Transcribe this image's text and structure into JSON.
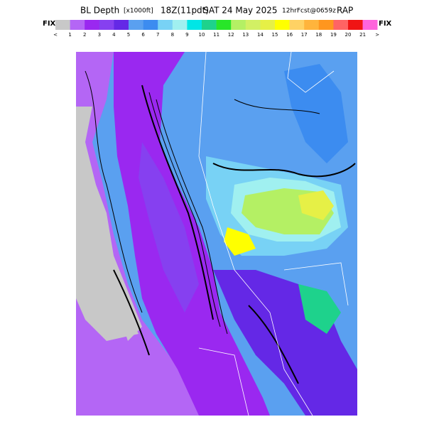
{
  "header": {
    "title": "BL Depth",
    "unit": "[x1000ft]",
    "time": "18Z(11pdt)",
    "date": "SAT 24 May 2025",
    "forecast": "12hrFcst@0659z",
    "model": "RAP"
  },
  "colorbar": {
    "left_label": "FIX",
    "right_label": "FIX",
    "colors": [
      "#c8c8c8",
      "#b466f5",
      "#9a28f0",
      "#8640f0",
      "#6428e6",
      "#5aa0f0",
      "#3c8cf0",
      "#78d2f5",
      "#a0f0f0",
      "#00e6e6",
      "#1ed28c",
      "#28e628",
      "#b4f064",
      "#d2f064",
      "#e6f046",
      "#ffff00",
      "#ffd264",
      "#ffb43c",
      "#ff961e",
      "#ff6464",
      "#f01414",
      "#ff64dc"
    ],
    "labels": [
      "<",
      "1",
      "2",
      "3",
      "4",
      "5",
      "6",
      "7",
      "8",
      "9",
      "10",
      "11",
      "12",
      "13",
      "14",
      "15",
      "16",
      "17",
      "18",
      "19",
      "20",
      "21",
      ">"
    ]
  }
}
